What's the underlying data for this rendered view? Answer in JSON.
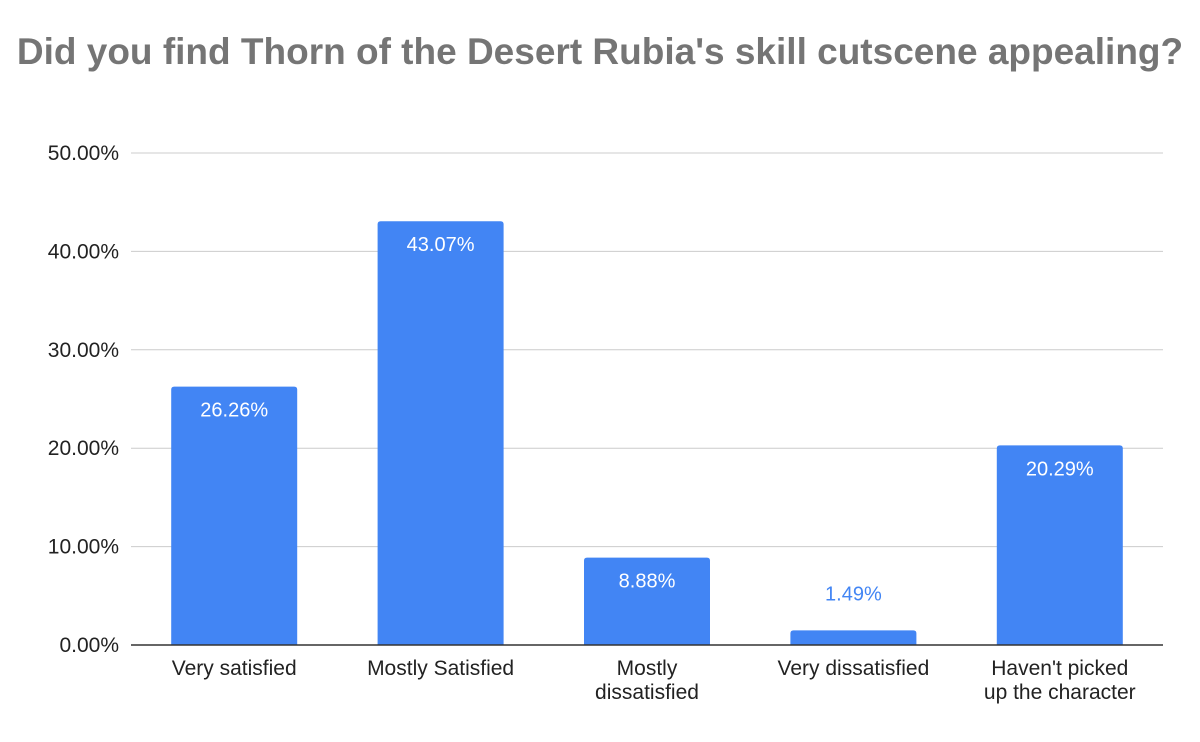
{
  "chart_data": {
    "type": "bar",
    "title": "Did you find Thorn of the Desert Rubia's skill cutscene appealing?",
    "categories": [
      [
        "Very satisfied"
      ],
      [
        "Mostly Satisfied"
      ],
      [
        "Mostly",
        "dissatisfied"
      ],
      [
        "Very dissatisfied"
      ],
      [
        "Haven't picked",
        "up the character"
      ]
    ],
    "values": [
      26.26,
      43.07,
      8.88,
      1.49,
      20.29
    ],
    "data_labels": [
      "26.26%",
      "43.07%",
      "8.88%",
      "1.49%",
      "20.29%"
    ],
    "ylim": [
      0,
      50
    ],
    "yticks": [
      {
        "value": 0,
        "label": "0.00%"
      },
      {
        "value": 10,
        "label": "10.00%"
      },
      {
        "value": 20,
        "label": "20.00%"
      },
      {
        "value": 30,
        "label": "30.00%"
      },
      {
        "value": 40,
        "label": "40.00%"
      },
      {
        "value": 50,
        "label": "50.00%"
      }
    ],
    "xlabel": "",
    "ylabel": "",
    "grid": true,
    "legend": "none",
    "colors": {
      "bar": "#4285f4",
      "label_inside": "#ffffff",
      "label_outside": "#4285f4",
      "grid": "#cccccc",
      "axis": "#333333",
      "title": "#757575"
    }
  }
}
